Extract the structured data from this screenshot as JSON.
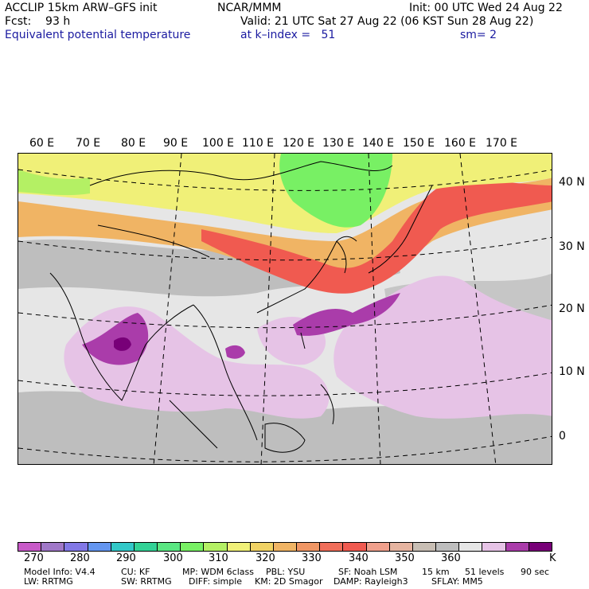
{
  "header": {
    "line1_left": "ACCLIP 15km ARW–GFS init",
    "line1_center": "NCAR/MMM",
    "line1_right": "Init: 00 UTC Wed 24 Aug 22",
    "line2_left": "Fcst:    93 h",
    "line2_right": "Valid: 21 UTC Sat 27 Aug 22 (06 KST Sun 28 Aug 22)",
    "line3_left": "Equivalent potential temperature",
    "line3_center": "at k–index =   51",
    "line3_right": "sm= 2"
  },
  "map": {
    "longitude_labels": [
      "60 E",
      "70 E",
      "80 E",
      "90 E",
      "100 E",
      "110 E",
      "120 E",
      "130 E",
      "140 E",
      "150 E",
      "160 E",
      "170 E"
    ],
    "latitude_labels": [
      "40 N",
      "30 N",
      "20 N",
      "10 N",
      "0"
    ]
  },
  "colorbar": {
    "colors": [
      "#c85ac8",
      "#a078c8",
      "#8278e6",
      "#6496f0",
      "#32c8c8",
      "#32d296",
      "#5ae682",
      "#78f064",
      "#b4f064",
      "#f0f078",
      "#f0d264",
      "#f0b464",
      "#f09664",
      "#f06e5a",
      "#f05a50",
      "#f0a08c",
      "#e6b4a0",
      "#c8beb4",
      "#bebebe",
      "#e6e6e6",
      "#e6c3e6",
      "#aa3caa",
      "#780078"
    ],
    "tick_labels": [
      "270",
      "280",
      "290",
      "300",
      "310",
      "320",
      "330",
      "340",
      "350",
      "360"
    ],
    "unit": "K"
  },
  "footer": {
    "line1": [
      "Model Info: V4.4",
      "CU: KF",
      "MP: WDM 6class",
      "PBL: YSU",
      "SF: Noah LSM",
      "15 km",
      "51 levels",
      "90 sec"
    ],
    "line2": [
      "LW: RRTMG",
      "SW: RRTMG",
      "DIFF: simple",
      "KM: 2D Smagor",
      "DAMP: Rayleigh3",
      "SFLAY: MM5"
    ]
  }
}
